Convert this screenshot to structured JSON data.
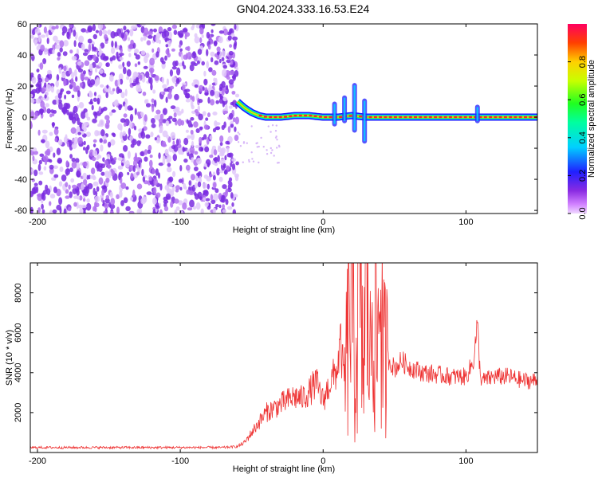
{
  "title": "GN04.2024.333.16.53.E24",
  "colors": {
    "snr_line": "#ee3333",
    "noise": "#8a3fe0",
    "axes": "#000000"
  },
  "chart_data": [
    {
      "type": "heatmap",
      "name": "spectrogram",
      "xlabel": "Height of straight line (km)",
      "ylabel": "Frequency (Hz)",
      "xlim": [
        -205,
        150
      ],
      "ylim": [
        -62,
        60
      ],
      "xticks": [
        -200,
        -100,
        0,
        100
      ],
      "yticks": [
        -60,
        -40,
        -20,
        0,
        20,
        40,
        60
      ],
      "noise_region_x": [
        -205,
        -60
      ],
      "signal_band": {
        "x": [
          -60,
          -55,
          -50,
          -45,
          -40,
          -30,
          -20,
          -10,
          0,
          10,
          20,
          30,
          40,
          60,
          80,
          100,
          110,
          150
        ],
        "center_hz": [
          10,
          6,
          3,
          1,
          0,
          0,
          1,
          1,
          0,
          0,
          1,
          0,
          0,
          0,
          0,
          0,
          0,
          0
        ]
      },
      "bursts": [
        {
          "x": 8,
          "low_hz": -6,
          "high_hz": 10
        },
        {
          "x": 15,
          "low_hz": -4,
          "high_hz": 14
        },
        {
          "x": 22,
          "low_hz": -10,
          "high_hz": 22
        },
        {
          "x": 29,
          "low_hz": -17,
          "high_hz": 12
        },
        {
          "x": 108,
          "low_hz": -4,
          "high_hz": 8
        }
      ],
      "colorbar": {
        "label": "Normalized spectral amplitude",
        "range": [
          0,
          1
        ],
        "ticks": [
          0.0,
          0.2,
          0.4,
          0.6,
          0.8
        ]
      }
    },
    {
      "type": "line",
      "name": "snr",
      "xlabel": "Height of straight line (km)",
      "ylabel": "SNR (10 * v/v)",
      "xlim": [
        -205,
        150
      ],
      "ylim": [
        0,
        9500
      ],
      "xticks": [
        -200,
        -100,
        0,
        100
      ],
      "yticks": [
        2000,
        4000,
        6000,
        8000
      ],
      "series": [
        {
          "x": [
            -205,
            -180,
            -150,
            -120,
            -90,
            -70,
            -60,
            -55,
            -50,
            -45,
            -40,
            -35,
            -30,
            -25,
            -20,
            -15,
            -10,
            -5,
            0,
            5,
            8,
            10,
            12,
            15,
            18,
            20,
            22,
            25,
            28,
            30,
            33,
            35,
            38,
            40,
            42,
            45,
            50,
            55,
            60,
            70,
            80,
            90,
            100,
            105,
            108,
            110,
            112,
            120,
            130,
            140,
            150
          ],
          "values": [
            250,
            250,
            250,
            250,
            250,
            250,
            300,
            500,
            1000,
            1500,
            2000,
            2200,
            2400,
            2600,
            2800,
            2700,
            3000,
            3500,
            2600,
            3500,
            3900,
            4200,
            5500,
            3500,
            6000,
            9500,
            3500,
            7800,
            4000,
            8800,
            4500,
            9000,
            5000,
            9500,
            4500,
            4800,
            4200,
            4600,
            4300,
            4000,
            3900,
            3800,
            3800,
            4500,
            6400,
            3800,
            3600,
            3800,
            3800,
            3600,
            3600
          ]
        }
      ]
    }
  ]
}
